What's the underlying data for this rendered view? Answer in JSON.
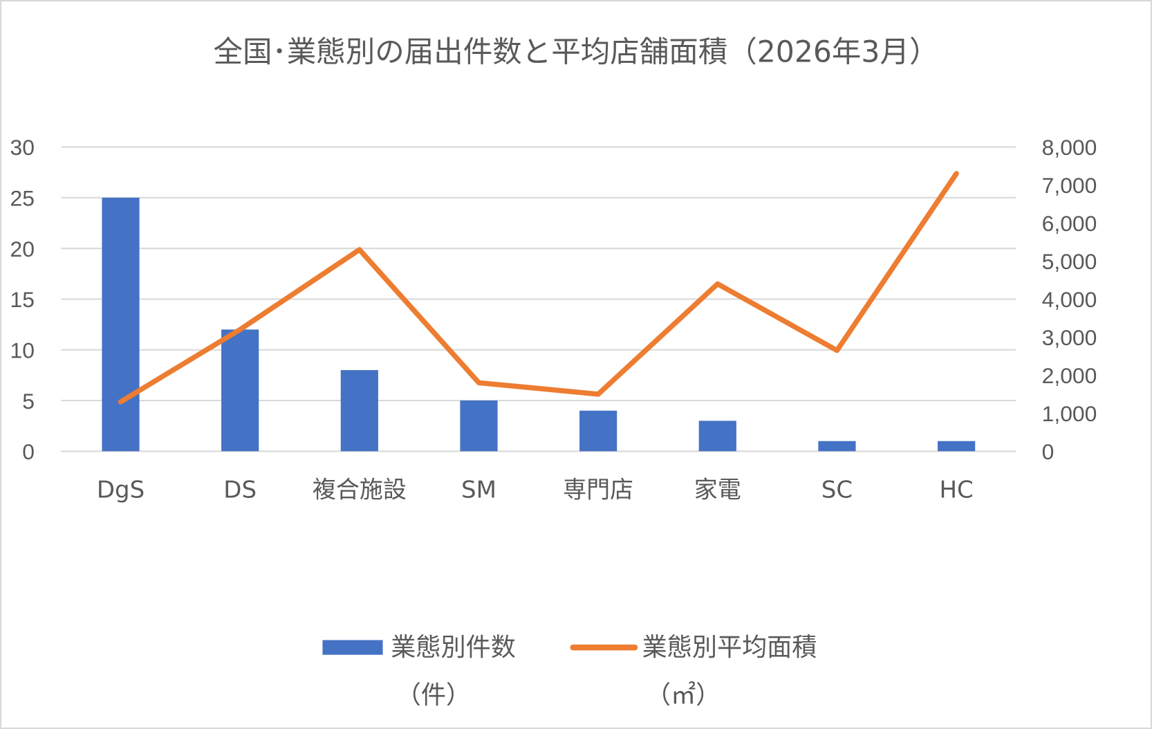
{
  "chart_data": {
    "type": "bar+line",
    "title": "全国･業態別の届出件数と平均店舗面積（2026年3月）",
    "categories": [
      "DgS",
      "DS",
      "複合施設",
      "SM",
      "専門店",
      "家電",
      "SC",
      "HC"
    ],
    "series": [
      {
        "name": "業態別件数（件）",
        "name_line1": "業態別件数",
        "name_line2": "（件）",
        "type": "bar",
        "axis": "left",
        "color": "#4472C4",
        "values": [
          25,
          12,
          8,
          5,
          4,
          3,
          1,
          1
        ]
      },
      {
        "name": "業態別平均面積（㎡）",
        "name_line1": "業態別平均面積",
        "name_line2": "（㎡）",
        "type": "line",
        "axis": "right",
        "color": "#ED7D31",
        "values": [
          1300,
          3200,
          5300,
          1800,
          1500,
          4400,
          2650,
          7300
        ]
      }
    ],
    "left_axis": {
      "range": [
        0,
        30
      ],
      "ticks": [
        "0",
        "5",
        "10",
        "15",
        "20",
        "25",
        "30"
      ]
    },
    "right_axis": {
      "range": [
        0,
        8000
      ],
      "ticks": [
        "0",
        "1,000",
        "2,000",
        "3,000",
        "4,000",
        "5,000",
        "6,000",
        "7,000",
        "8,000"
      ]
    },
    "grid": true,
    "legend": "bottom"
  }
}
